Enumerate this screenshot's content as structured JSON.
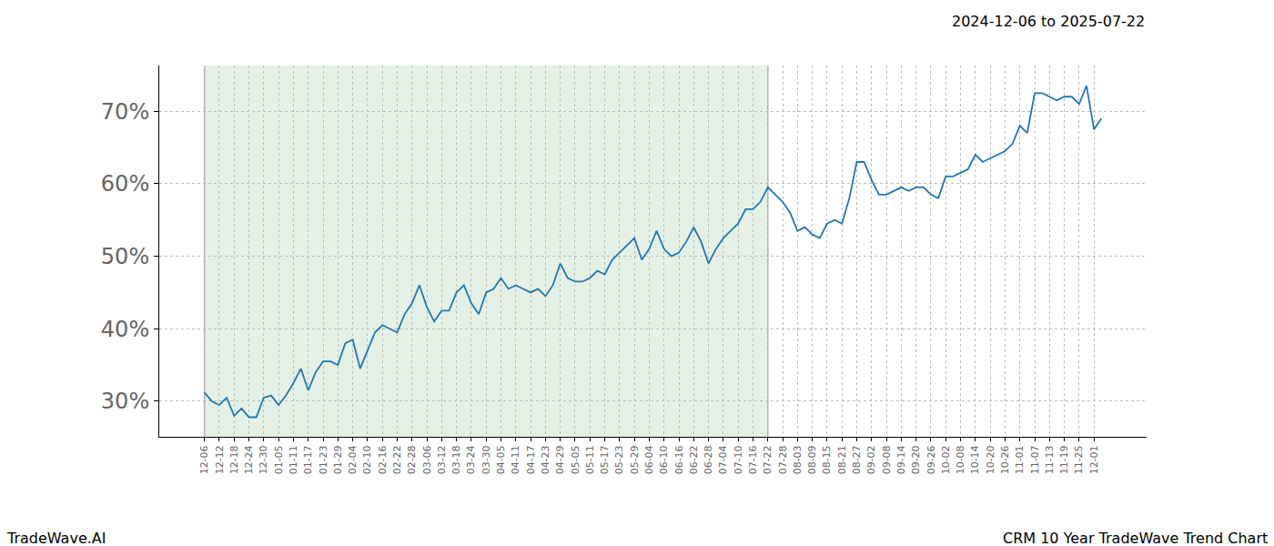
{
  "chart_data": {
    "type": "line",
    "title": "2024-12-06 to 2025-07-22",
    "footer_left": "TradeWave.AI",
    "footer_right": "CRM 10 Year TradeWave Trend Chart",
    "categories": [
      "12-06",
      null,
      "12-12",
      null,
      "12-18",
      null,
      "12-24",
      null,
      "12-30",
      null,
      "01-05",
      null,
      "01-11",
      null,
      "01-17",
      null,
      "01-23",
      null,
      "01-29",
      null,
      "02-04",
      null,
      "02-10",
      null,
      "02-16",
      null,
      "02-22",
      null,
      "02-28",
      null,
      "03-06",
      null,
      "03-12",
      null,
      "03-18",
      null,
      "03-24",
      null,
      "03-30",
      null,
      "04-05",
      null,
      "04-11",
      null,
      "04-17",
      null,
      "04-23",
      null,
      "04-29",
      null,
      "05-05",
      null,
      "05-11",
      null,
      "05-17",
      null,
      "05-23",
      null,
      "05-29",
      null,
      "06-04",
      null,
      "06-10",
      null,
      "06-16",
      null,
      "06-22",
      null,
      "06-28",
      null,
      "07-04",
      null,
      "07-10",
      null,
      "07-16",
      null,
      "07-22",
      null,
      "07-28",
      null,
      "08-03",
      null,
      "08-09",
      null,
      "08-15",
      null,
      "08-21",
      null,
      "08-27",
      null,
      "09-02",
      null,
      "09-08",
      null,
      "09-14",
      null,
      "09-20",
      null,
      "09-26",
      null,
      "10-02",
      null,
      "10-08",
      null,
      "10-14",
      null,
      "10-20",
      null,
      "10-26",
      null,
      "11-01",
      null,
      "11-07",
      null,
      "11-13",
      null,
      "11-19",
      null,
      "11-25",
      null,
      "12-01",
      null
    ],
    "values": [
      31.2,
      30.0,
      29.5,
      30.5,
      28.0,
      29.0,
      27.8,
      27.8,
      30.5,
      30.8,
      29.5,
      30.8,
      32.5,
      34.5,
      31.5,
      34.0,
      35.5,
      35.5,
      35.0,
      38.0,
      38.5,
      34.5,
      37.0,
      39.5,
      40.5,
      40.0,
      39.5,
      42.0,
      43.5,
      46.0,
      43.0,
      41.0,
      42.5,
      42.5,
      45.0,
      46.0,
      43.5,
      42.0,
      45.0,
      45.5,
      47.0,
      45.5,
      46.0,
      45.5,
      45.0,
      45.5,
      44.5,
      46.0,
      49.0,
      47.0,
      46.5,
      46.5,
      47.0,
      48.0,
      47.5,
      49.5,
      50.5,
      51.5,
      52.5,
      49.5,
      51.0,
      53.5,
      51.0,
      50.0,
      50.5,
      52.0,
      54.0,
      52.0,
      49.0,
      51.0,
      52.5,
      53.5,
      54.5,
      56.5,
      56.5,
      57.5,
      59.5,
      58.5,
      57.5,
      56.0,
      53.5,
      54.0,
      53.0,
      52.5,
      54.5,
      55.0,
      54.5,
      58.0,
      63.0,
      63.0,
      60.5,
      58.5,
      58.5,
      59.0,
      59.5,
      59.0,
      59.5,
      59.5,
      58.5,
      58.0,
      61.0,
      61.0,
      61.5,
      62.0,
      64.0,
      63.0,
      63.5,
      64.0,
      64.5,
      65.5,
      68.0,
      67.0,
      72.5,
      72.5,
      72.0,
      71.5,
      72.0,
      72.0,
      71.0,
      73.5,
      67.5,
      69.0
    ],
    "color": "#1f77b4",
    "shaded_range": [
      "12-06",
      "07-22"
    ],
    "ylim": [
      25.1,
      76.3
    ],
    "yticks": [
      {
        "value": 30,
        "label": "30%"
      },
      {
        "value": 40,
        "label": "40%"
      },
      {
        "value": 50,
        "label": "50%"
      },
      {
        "value": 60,
        "label": "60%"
      },
      {
        "value": 70,
        "label": "70%"
      }
    ],
    "grid": true
  }
}
